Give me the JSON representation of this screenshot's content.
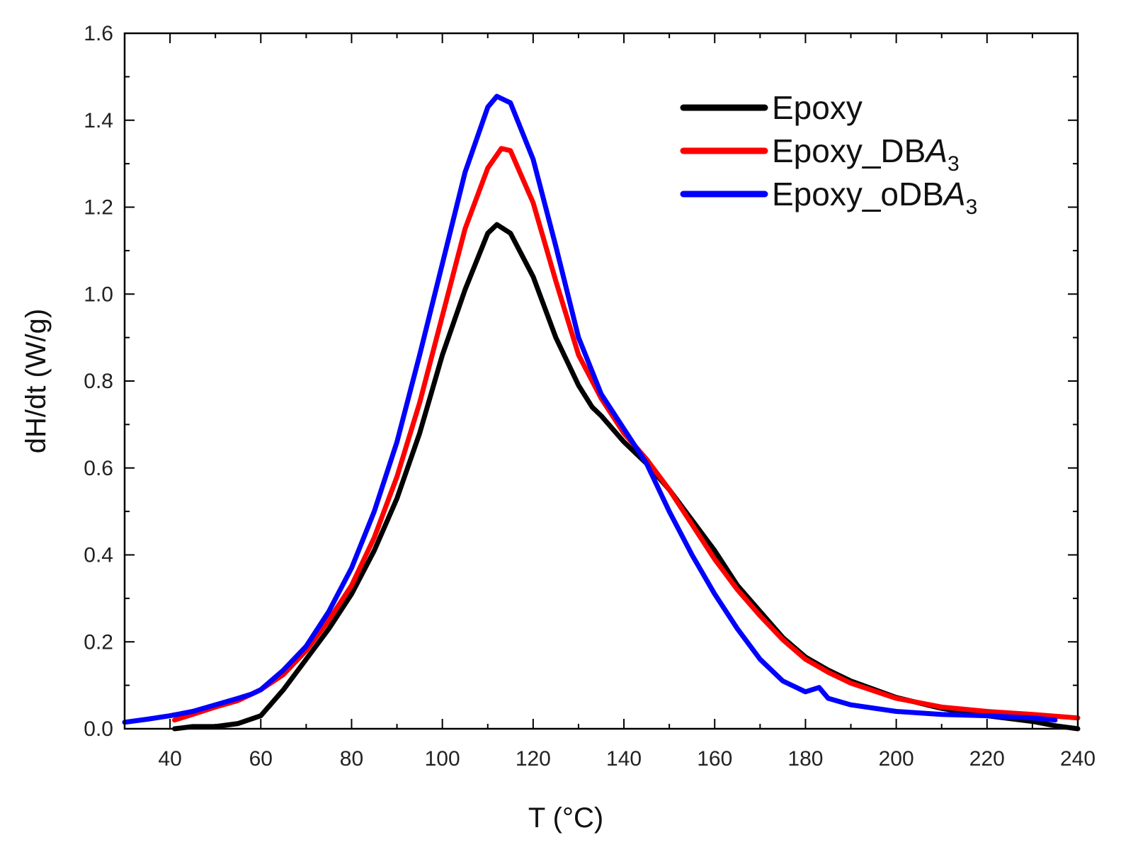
{
  "chart_data": {
    "type": "line",
    "title": "",
    "xlabel": "T (°C)",
    "ylabel": "dH/dt (W/g)",
    "xlim": [
      30,
      240
    ],
    "ylim": [
      0,
      1.6
    ],
    "xticks": [
      40,
      60,
      80,
      100,
      120,
      140,
      160,
      180,
      200,
      220,
      240
    ],
    "xtick_labels": [
      "40",
      "60",
      "80",
      "100",
      "120",
      "140",
      "160",
      "180",
      "200",
      "220",
      "240"
    ],
    "yticks": [
      0.0,
      0.2,
      0.4,
      0.6,
      0.8,
      1.0,
      1.2,
      1.4,
      1.6
    ],
    "ytick_labels": [
      "0.0",
      "0.2",
      "0.4",
      "0.6",
      "0.8",
      "1.0",
      "1.2",
      "1.4",
      "1.6"
    ],
    "grid": false,
    "legend_position": "top-right",
    "series": [
      {
        "name": "Epoxy",
        "legend_base": "Epoxy",
        "legend_italic": "",
        "legend_sub": "",
        "color": "#000000",
        "x": [
          41,
          45,
          50,
          55,
          60,
          65,
          70,
          75,
          80,
          85,
          90,
          95,
          100,
          105,
          110,
          112,
          115,
          120,
          125,
          130,
          133,
          135,
          140,
          145,
          150,
          155,
          160,
          165,
          170,
          175,
          180,
          185,
          190,
          200,
          210,
          220,
          230,
          235,
          240
        ],
        "y": [
          0.0,
          0.005,
          0.005,
          0.012,
          0.03,
          0.09,
          0.16,
          0.23,
          0.31,
          0.41,
          0.53,
          0.68,
          0.86,
          1.01,
          1.14,
          1.16,
          1.14,
          1.04,
          0.9,
          0.79,
          0.74,
          0.72,
          0.66,
          0.61,
          0.55,
          0.48,
          0.41,
          0.33,
          0.27,
          0.21,
          0.165,
          0.135,
          0.11,
          0.072,
          0.047,
          0.03,
          0.017,
          0.007,
          0.0
        ]
      },
      {
        "name": "Epoxy_DBA3",
        "legend_base": "Epoxy_DB",
        "legend_italic": "A",
        "legend_sub": "3",
        "color": "#ff0000",
        "x": [
          41,
          45,
          50,
          55,
          60,
          65,
          70,
          75,
          80,
          85,
          90,
          95,
          100,
          105,
          110,
          113,
          115,
          120,
          125,
          130,
          135,
          140,
          145,
          150,
          155,
          160,
          165,
          170,
          175,
          180,
          185,
          190,
          200,
          210,
          220,
          230,
          240
        ],
        "y": [
          0.02,
          0.033,
          0.05,
          0.065,
          0.09,
          0.125,
          0.18,
          0.25,
          0.33,
          0.44,
          0.58,
          0.75,
          0.95,
          1.15,
          1.29,
          1.335,
          1.33,
          1.21,
          1.03,
          0.86,
          0.76,
          0.68,
          0.62,
          0.55,
          0.47,
          0.39,
          0.32,
          0.26,
          0.205,
          0.16,
          0.13,
          0.105,
          0.07,
          0.05,
          0.04,
          0.033,
          0.025
        ]
      },
      {
        "name": "Epoxy_oDBA3",
        "legend_base": "Epoxy_oDB",
        "legend_italic": "A",
        "legend_sub": "3",
        "color": "#0000ff",
        "x": [
          30,
          35,
          40,
          45,
          50,
          55,
          58,
          60,
          65,
          70,
          75,
          80,
          85,
          90,
          95,
          100,
          105,
          110,
          112,
          115,
          120,
          125,
          130,
          135,
          140,
          145,
          150,
          155,
          160,
          165,
          170,
          175,
          180,
          183,
          185,
          190,
          200,
          210,
          220,
          230,
          235
        ],
        "y": [
          0.015,
          0.022,
          0.03,
          0.04,
          0.055,
          0.07,
          0.08,
          0.09,
          0.135,
          0.19,
          0.27,
          0.37,
          0.5,
          0.66,
          0.86,
          1.07,
          1.28,
          1.43,
          1.455,
          1.44,
          1.31,
          1.11,
          0.9,
          0.77,
          0.69,
          0.61,
          0.5,
          0.4,
          0.31,
          0.23,
          0.16,
          0.11,
          0.085,
          0.095,
          0.07,
          0.055,
          0.04,
          0.033,
          0.03,
          0.025,
          0.02
        ]
      }
    ]
  }
}
